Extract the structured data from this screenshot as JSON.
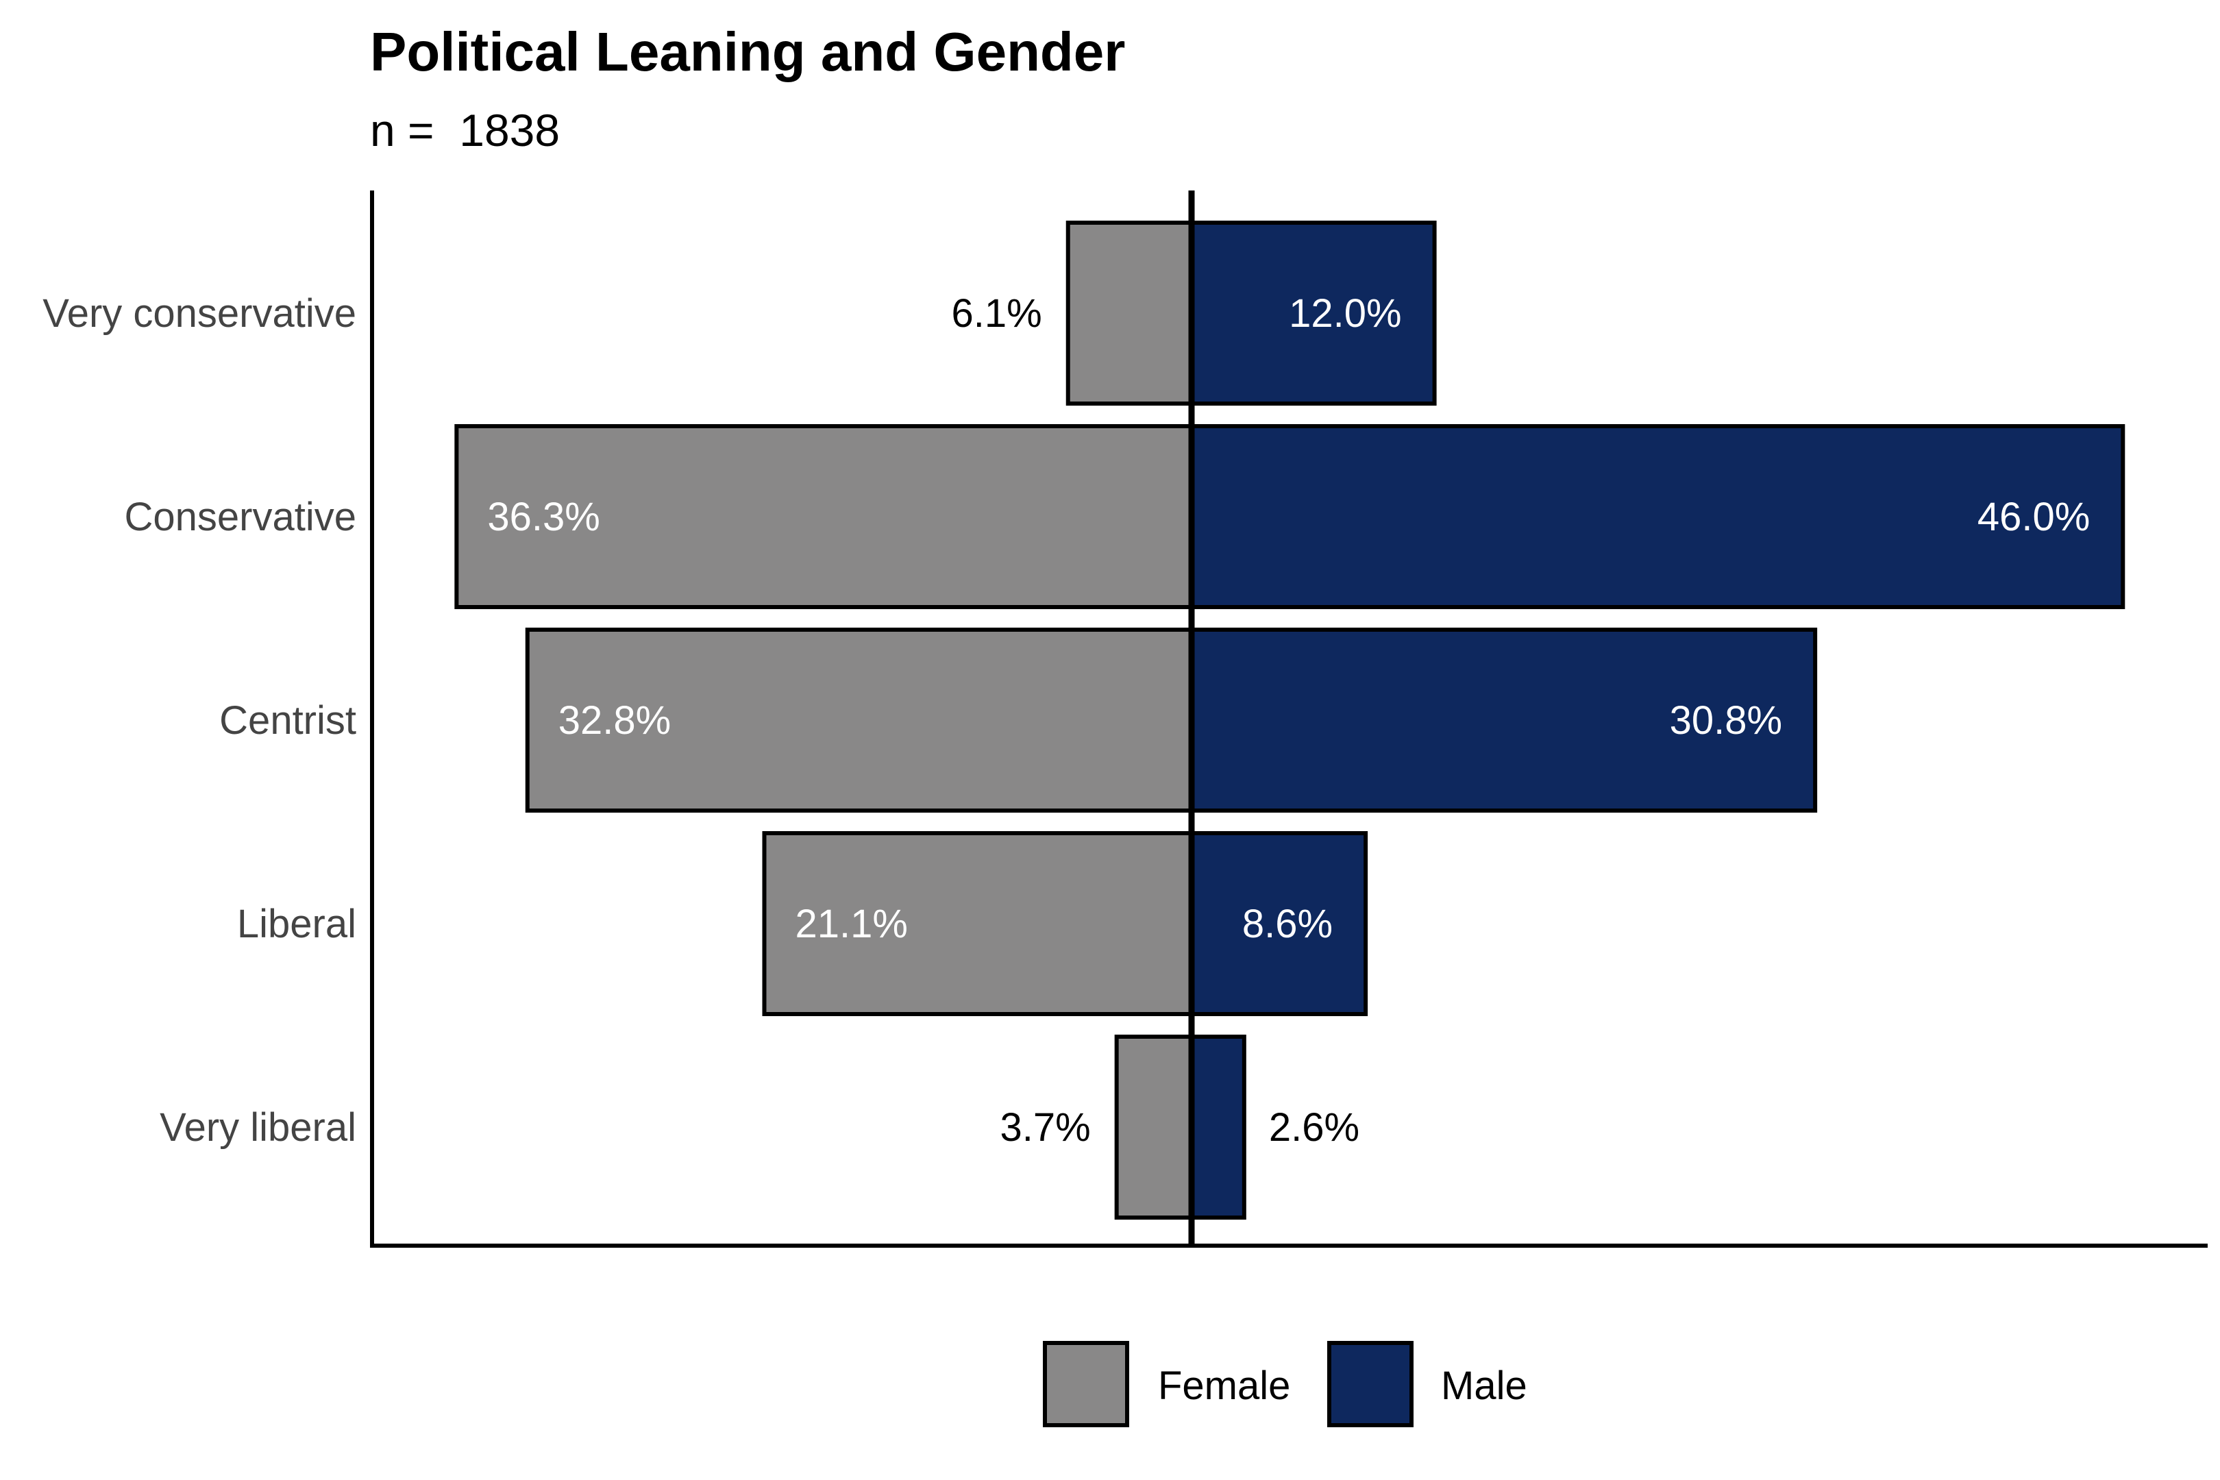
{
  "chart_data": {
    "type": "bar",
    "orientation": "horizontal-diverging",
    "title": "Political Leaning and Gender",
    "subtitle": "n =  1838",
    "categories": [
      "Very conservative",
      "Conservative",
      "Centrist",
      "Liberal",
      "Very liberal"
    ],
    "series": [
      {
        "name": "Female",
        "color": "#898888",
        "direction": "left",
        "values": [
          6.1,
          36.3,
          32.8,
          21.1,
          3.7
        ],
        "labels": [
          "6.1%",
          "36.3%",
          "32.8%",
          "21.1%",
          "3.7%"
        ]
      },
      {
        "name": "Male",
        "color": "#0e285e",
        "direction": "right",
        "values": [
          12.0,
          46.0,
          30.8,
          8.6,
          2.6
        ],
        "labels": [
          "12.0%",
          "46.0%",
          "30.8%",
          "8.6%",
          "2.6%"
        ]
      }
    ],
    "units": "%",
    "xlim": [
      -40.2,
      50.6
    ],
    "grid": false,
    "legend_position": "bottom"
  }
}
